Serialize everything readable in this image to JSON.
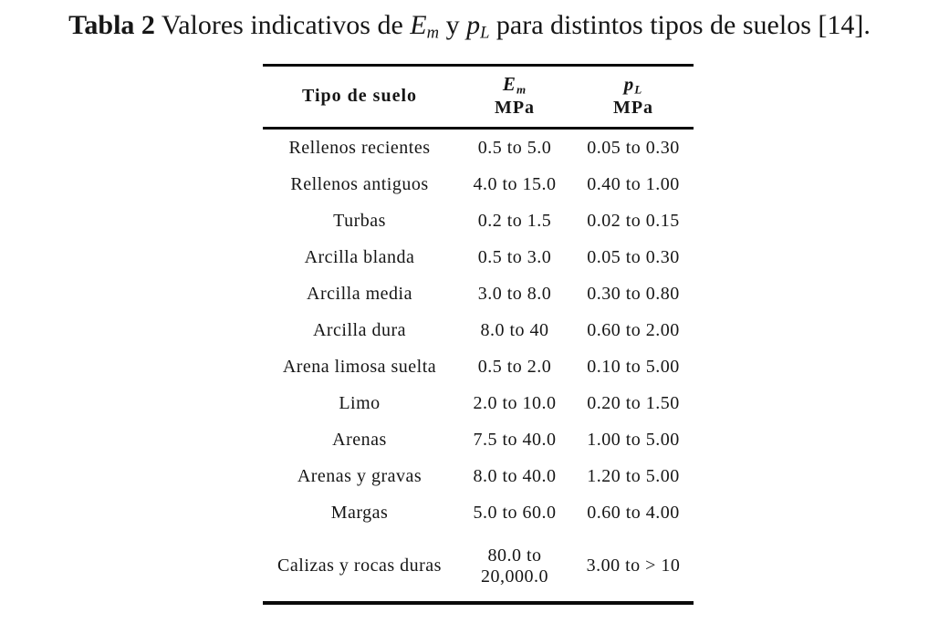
{
  "page": {
    "background": "#ffffff",
    "text_color": "#161616",
    "rule_color": "#0a0a0a"
  },
  "caption": {
    "label": "Tabla 2",
    "text_before": " Valores indicativos de ",
    "em_symbol": "E",
    "em_sub": "m",
    "text_between": " y ",
    "pl_symbol": "p",
    "pl_sub": "L",
    "text_after": " para distintos tipos de suelos [14]."
  },
  "table": {
    "header": {
      "col1": "Tipo de suelo",
      "col2_symbol": "E",
      "col2_sub": "m",
      "col2_unit": "MPa",
      "col3_symbol": "p",
      "col3_sub": "L",
      "col3_unit": "MPa"
    },
    "rows": [
      {
        "tipo": "Rellenos recientes",
        "em": "0.5 to 5.0",
        "pl": "0.05 to 0.30"
      },
      {
        "tipo": "Rellenos antiguos",
        "em": "4.0 to 15.0",
        "pl": "0.40 to 1.00"
      },
      {
        "tipo": "Turbas",
        "em": "0.2 to 1.5",
        "pl": "0.02 to 0.15"
      },
      {
        "tipo": "Arcilla blanda",
        "em": "0.5 to 3.0",
        "pl": "0.05 to 0.30"
      },
      {
        "tipo": "Arcilla media",
        "em": "3.0 to 8.0",
        "pl": "0.30 to 0.80"
      },
      {
        "tipo": "Arcilla dura",
        "em": "8.0 to 40",
        "pl": "0.60 to 2.00"
      },
      {
        "tipo": "Arena limosa suelta",
        "em": "0.5 to 2.0",
        "pl": "0.10 to 5.00"
      },
      {
        "tipo": "Limo",
        "em": "2.0 to 10.0",
        "pl": "0.20 to 1.50"
      },
      {
        "tipo": "Arenas",
        "em": "7.5 to 40.0",
        "pl": "1.00 to 5.00"
      },
      {
        "tipo": "Arenas y gravas",
        "em": "8.0 to 40.0",
        "pl": "1.20 to 5.00"
      },
      {
        "tipo": "Margas",
        "em": "5.0 to 60.0",
        "pl": "0.60 to 4.00"
      },
      {
        "tipo": "Calizas y rocas duras",
        "em": "80.0 to\n20,000.0",
        "pl": "3.00 to > 10"
      }
    ]
  }
}
